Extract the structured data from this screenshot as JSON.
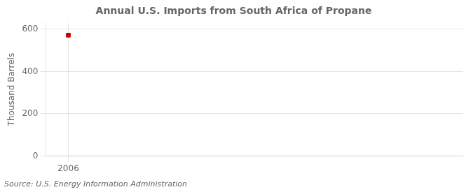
{
  "chart_data": {
    "type": "scatter",
    "title": "Annual U.S. Imports from South Africa of Propane",
    "ylabel": "Thousand Barrels",
    "source": "Source: U.S. Energy Information Administration",
    "x": [
      2006
    ],
    "values": [
      572
    ],
    "color": "#cc0000",
    "marker": "square",
    "xlim": [
      2005.4,
      2016.5
    ],
    "ylim": [
      0,
      630
    ],
    "xticks": [
      2006
    ],
    "yticks": [
      0,
      200,
      400,
      600
    ],
    "grid": true
  }
}
